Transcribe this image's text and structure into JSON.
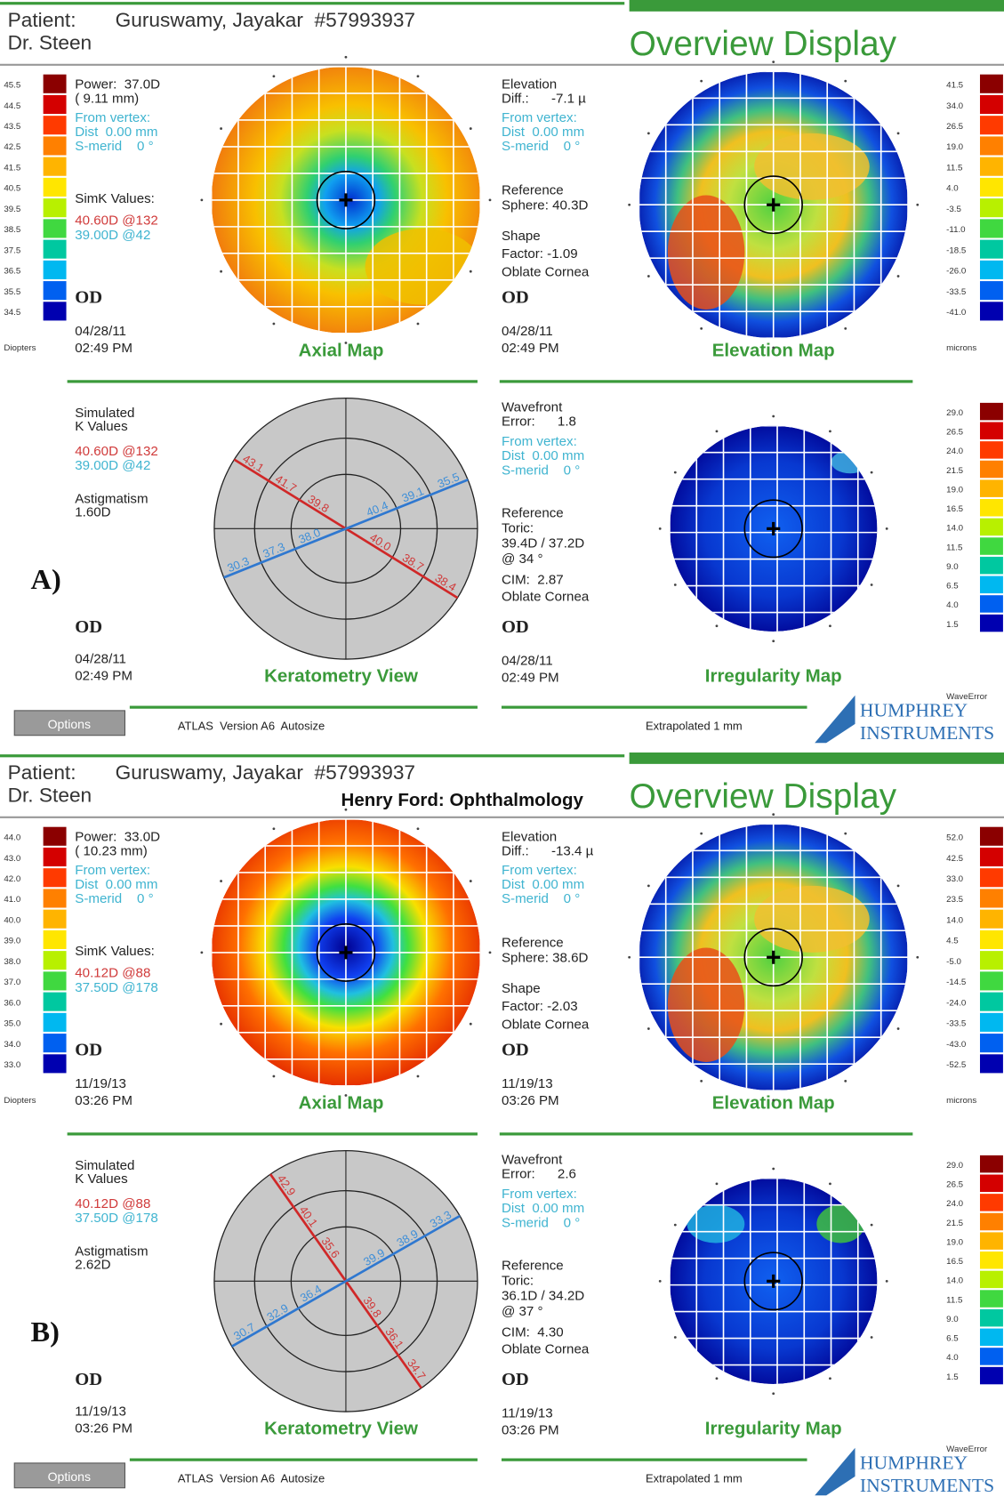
{
  "panels": [
    {
      "label": "A)",
      "header": {
        "patient_label": "Patient:",
        "patient": "Guruswamy, Jayakar  #57993937",
        "doctor": "Dr. Steen",
        "title": "Overview Display"
      },
      "axial": {
        "scale": [
          "45.5",
          "44.5",
          "43.5",
          "42.5",
          "41.5",
          "40.5",
          "39.5",
          "38.5",
          "37.5",
          "36.5",
          "35.5",
          "34.5"
        ],
        "unit": "Diopters",
        "power": [
          "Power:  37.0D",
          "( 9.11 mm)"
        ],
        "vertex": [
          "From vertex:",
          "Dist  0.00 mm",
          "S-merid    0 °"
        ],
        "simk_title": "SimK Values:",
        "simk": [
          "40.60D @132",
          "39.00D @42"
        ],
        "eye": "OD",
        "date": "04/28/11",
        "time": "02:49 PM",
        "title": "Axial Map"
      },
      "elevation": {
        "scale": [
          "41.5",
          "34.0",
          "26.5",
          "19.0",
          "11.5",
          "4.0",
          "-3.5",
          "-11.0",
          "-18.5",
          "-26.0",
          "-33.5",
          "-41.0"
        ],
        "unit": "microns",
        "diff": [
          "Elevation",
          "Diff.:      -7.1 µ"
        ],
        "vertex": [
          "From vertex:",
          "Dist  0.00 mm",
          "S-merid    0 °"
        ],
        "reference": [
          "Reference",
          "Sphere: 40.3D"
        ],
        "shape": [
          "Shape",
          "Factor: -1.09",
          "Oblate Cornea"
        ],
        "eye": "OD",
        "date": "04/28/11",
        "time": "02:49 PM",
        "title": "Elevation Map"
      },
      "keratometry": {
        "simk_title": [
          "Simulated",
          "K Values"
        ],
        "simk": [
          "40.60D @132",
          "39.00D @42"
        ],
        "astig": [
          "Astigmatism",
          "1.60D"
        ],
        "red_labels": [
          "43.1",
          "41.7",
          "39.8",
          "38.4",
          "38.7",
          "40.0"
        ],
        "blue_labels": [
          "35.5",
          "39.1",
          "40.4",
          "30.3",
          "37.3",
          "38.0"
        ],
        "eye": "OD",
        "date": "04/28/11",
        "time": "02:49 PM",
        "title": "Keratometry View"
      },
      "irregularity": {
        "scale": [
          "29.0",
          "26.5",
          "24.0",
          "21.5",
          "19.0",
          "16.5",
          "14.0",
          "11.5",
          "9.0",
          "6.5",
          "4.0",
          "1.5"
        ],
        "unit": "WaveError",
        "wavefront": [
          "Wavefront",
          "Error:      1.8"
        ],
        "vertex": [
          "From vertex:",
          "Dist  0.00 mm",
          "S-merid    0 °"
        ],
        "reference": [
          "Reference",
          "Toric:",
          "39.4D / 37.2D",
          "@ 34 °"
        ],
        "cim": [
          "CIM:  2.87",
          "Oblate Cornea"
        ],
        "eye": "OD",
        "date": "04/28/11",
        "time": "02:49 PM",
        "title": "Irregularity Map"
      },
      "footer": {
        "options": "Options",
        "version": "ATLAS  Version A6  Autosize",
        "extrapolated": "Extrapolated 1 mm",
        "brand": [
          "HUMPHREY",
          "INSTRUMENTS"
        ]
      }
    },
    {
      "label": "B)",
      "header": {
        "patient_label": "Patient:",
        "patient": "Guruswamy, Jayakar  #57993937",
        "doctor": "Dr. Steen",
        "institution": "Henry Ford: Ophthalmology",
        "title": "Overview Display"
      },
      "axial": {
        "scale": [
          "44.0",
          "43.0",
          "42.0",
          "41.0",
          "40.0",
          "39.0",
          "38.0",
          "37.0",
          "36.0",
          "35.0",
          "34.0",
          "33.0"
        ],
        "unit": "Diopters",
        "power": [
          "Power:  33.0D",
          "( 10.23 mm)"
        ],
        "vertex": [
          "From vertex:",
          "Dist  0.00 mm",
          "S-merid    0 °"
        ],
        "simk_title": "SimK Values:",
        "simk": [
          "40.12D @88",
          "37.50D @178"
        ],
        "eye": "OD",
        "date": "11/19/13",
        "time": "03:26 PM",
        "title": "Axial Map"
      },
      "elevation": {
        "scale": [
          "52.0",
          "42.5",
          "33.0",
          "23.5",
          "14.0",
          "4.5",
          "-5.0",
          "-14.5",
          "-24.0",
          "-33.5",
          "-43.0",
          "-52.5"
        ],
        "unit": "microns",
        "diff": [
          "Elevation",
          "Diff.:      -13.4 µ"
        ],
        "vertex": [
          "From vertex:",
          "Dist  0.00 mm",
          "S-merid    0 °"
        ],
        "reference": [
          "Reference",
          "Sphere: 38.6D"
        ],
        "shape": [
          "Shape",
          "Factor: -2.03",
          "Oblate Cornea"
        ],
        "eye": "OD",
        "date": "11/19/13",
        "time": "03:26 PM",
        "title": "Elevation Map"
      },
      "keratometry": {
        "simk_title": [
          "Simulated",
          "K Values"
        ],
        "simk": [
          "40.12D @88",
          "37.50D @178"
        ],
        "astig": [
          "Astigmatism",
          "2.62D"
        ],
        "red_labels": [
          "42.9",
          "40.1",
          "35.6",
          "34.7",
          "36.1",
          "39.8"
        ],
        "blue_labels": [
          "33.3",
          "38.9",
          "39.9",
          "30.7",
          "32.9",
          "36.4"
        ],
        "eye": "OD",
        "date": "11/19/13",
        "time": "03:26 PM",
        "title": "Keratometry View"
      },
      "irregularity": {
        "scale": [
          "29.0",
          "26.5",
          "24.0",
          "21.5",
          "19.0",
          "16.5",
          "14.0",
          "11.5",
          "9.0",
          "6.5",
          "4.0",
          "1.5"
        ],
        "unit": "WaveError",
        "wavefront": [
          "Wavefront",
          "Error:      2.6"
        ],
        "vertex": [
          "From vertex:",
          "Dist  0.00 mm",
          "S-merid    0 °"
        ],
        "reference": [
          "Reference",
          "Toric:",
          "36.1D / 34.2D",
          "@ 37 °"
        ],
        "cim": [
          "CIM:  4.30",
          "Oblate Cornea"
        ],
        "eye": "OD",
        "date": "11/19/13",
        "time": "03:26 PM",
        "title": "Irregularity Map"
      },
      "footer": {
        "options": "Options",
        "version": "ATLAS  Version A6  Autosize",
        "extrapolated": "Extrapolated 1 mm",
        "brand": [
          "HUMPHREY",
          "INSTRUMENTS"
        ]
      }
    }
  ]
}
